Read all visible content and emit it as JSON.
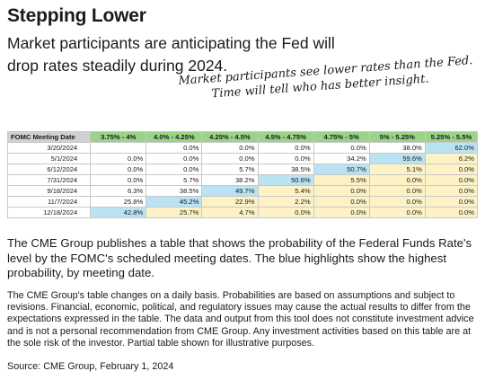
{
  "header": {
    "title": "Stepping Lower",
    "subtitle": "Market participants are anticipating the Fed will drop rates steadily during 2024."
  },
  "annotation": {
    "line1": "Market participants see lower rates than the Fed.",
    "line2": "Time will tell who has better insight."
  },
  "table": {
    "columns": [
      "FOMC Meeting Date",
      "3.75% - 4%",
      "4.0% - 4.25%",
      "4.25% - 4.5%",
      "4.5% - 4.75%",
      "4.75% - 5%",
      "5% - 5.25%",
      "5.25% - 5.5%"
    ],
    "rows": [
      {
        "date": "3/20/2024",
        "cells": [
          "",
          "0.0%",
          "0.0%",
          "0.0%",
          "0.0%",
          "38.0%",
          "62.0%"
        ]
      },
      {
        "date": "5/1/2024",
        "cells": [
          "0.0%",
          "0.0%",
          "0.0%",
          "0.0%",
          "34.2%",
          "59.6%",
          "6.2%"
        ]
      },
      {
        "date": "6/12/2024",
        "cells": [
          "0.0%",
          "0.0%",
          "5.7%",
          "38.5%",
          "50.7%",
          "5.1%",
          "0.0%"
        ]
      },
      {
        "date": "7/31/2024",
        "cells": [
          "0.0%",
          "5.7%",
          "38.2%",
          "50.6%",
          "5.5%",
          "0.0%",
          "0.0%"
        ]
      },
      {
        "date": "9/18/2024",
        "cells": [
          "6.3%",
          "38.5%",
          "49.7%",
          "5.4%",
          "0.0%",
          "0.0%",
          "0.0%"
        ]
      },
      {
        "date": "11/7/2024",
        "cells": [
          "25.8%",
          "45.2%",
          "22.9%",
          "2.2%",
          "0.0%",
          "0.0%",
          "0.0%"
        ]
      },
      {
        "date": "12/18/2024",
        "cells": [
          "42.8%",
          "25.7%",
          "4.7%",
          "0.0%",
          "0.0%",
          "0.0%",
          "0.0%"
        ]
      }
    ],
    "highlight_color": "#b9e3f2",
    "shade_color": "#fdf2c6",
    "header_color": "#9bd38a"
  },
  "body": {
    "paragraph1": "The CME Group publishes a table that shows the probability of the Federal Funds Rate's level by the FOMC's scheduled meeting dates. The blue highlights show the highest probability, by meeting date.",
    "paragraph2": "The CME Group's table changes on a daily basis. Probabilities are based on assumptions and subject to revisions. Financial, economic, political, and regulatory issues may cause the actual results to differ from the expectations expressed in the table. The data and output from this tool does not constitute investment advice and is not a personal recommendation from CME Group.  Any investment activities based on this table are at the sole risk of the investor. Partial table shown for illustrative purposes.",
    "source": "Source: CME Group,  February 1, 2024"
  }
}
